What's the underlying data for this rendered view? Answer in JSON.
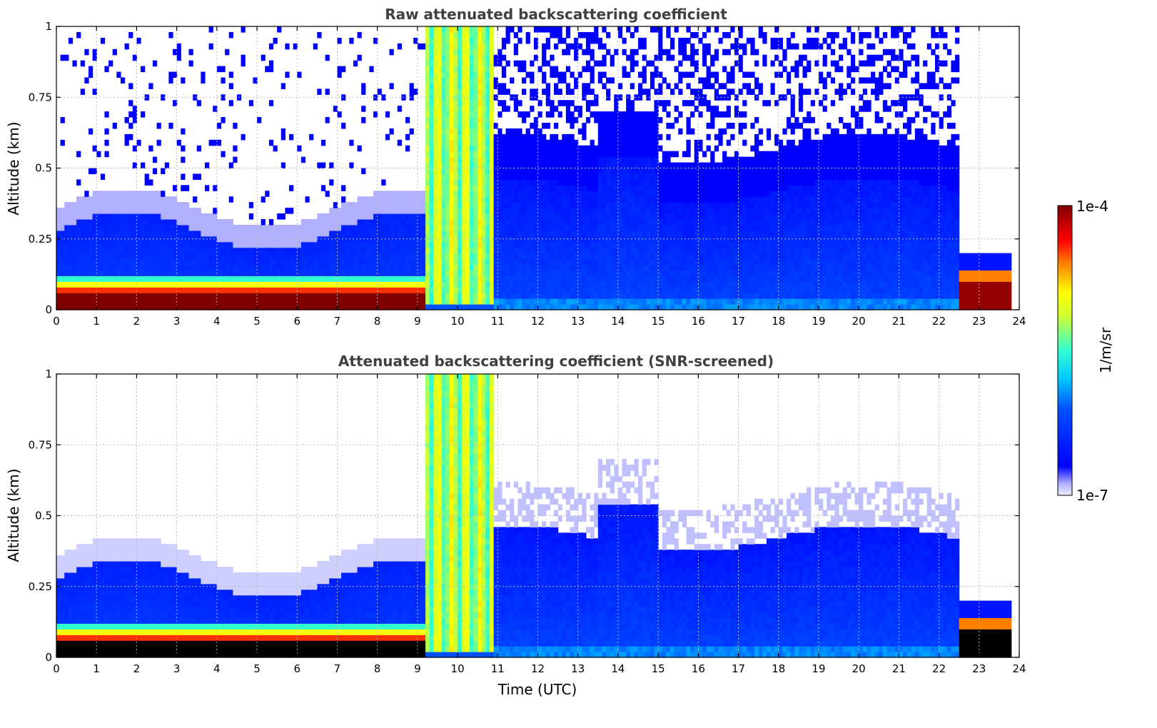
{
  "chart_data": [
    {
      "type": "heatmap",
      "title": "Raw attenuated backscattering coefficient",
      "xlabel": "",
      "ylabel": "Altitude (km)",
      "xlim": [
        0,
        24
      ],
      "ylim": [
        0,
        1
      ],
      "xticks": [
        "0",
        "1",
        "2",
        "3",
        "4",
        "5",
        "6",
        "7",
        "8",
        "9",
        "10",
        "11",
        "12",
        "13",
        "14",
        "15",
        "16",
        "17",
        "18",
        "19",
        "20",
        "21",
        "22",
        "23",
        "24"
      ],
      "yticks": [
        "0",
        "0.25",
        "0.5",
        "0.75",
        "1"
      ],
      "grid": true,
      "colorscale": "jet (log)",
      "description_layers": [
        {
          "feature": "dense aerosol layer",
          "time": [
            0,
            9.2
          ],
          "altitude": [
            0,
            0.1
          ],
          "log10_value": -4.0
        },
        {
          "feature": "boundary layer",
          "time": [
            0,
            9.2
          ],
          "altitude": [
            0.1,
            0.3
          ],
          "log10_value": -6.2
        },
        {
          "feature": "cloud/fog columns",
          "time": [
            9.2,
            11.0
          ],
          "altitude": [
            0,
            1
          ],
          "log10_value": -5.0
        },
        {
          "feature": "boundary layer",
          "time": [
            11.0,
            22.5
          ],
          "altitude": [
            0,
            0.45
          ],
          "log10_value": -6.0
        },
        {
          "feature": "low layer",
          "time": [
            22.5,
            23.8
          ],
          "altitude": [
            0,
            0.2
          ],
          "log10_value": -4.3
        }
      ]
    },
    {
      "type": "heatmap",
      "title": "Attenuated backscattering coefficient (SNR-screened)",
      "xlabel": "Time (UTC)",
      "ylabel": "Altitude (km)",
      "xlim": [
        0,
        24
      ],
      "ylim": [
        0,
        1
      ],
      "xticks": [
        "0",
        "1",
        "2",
        "3",
        "4",
        "5",
        "6",
        "7",
        "8",
        "9",
        "10",
        "11",
        "12",
        "13",
        "14",
        "15",
        "16",
        "17",
        "18",
        "19",
        "20",
        "21",
        "22",
        "23",
        "24"
      ],
      "yticks": [
        "0",
        "0.25",
        "0.5",
        "0.75",
        "1"
      ],
      "grid": true,
      "colorscale": "jet (log)"
    }
  ],
  "colorbar": {
    "label": "1/m/sr",
    "max_label": "1e-4",
    "min_label": "1e-7",
    "min": 1e-07,
    "max": 0.0001
  }
}
